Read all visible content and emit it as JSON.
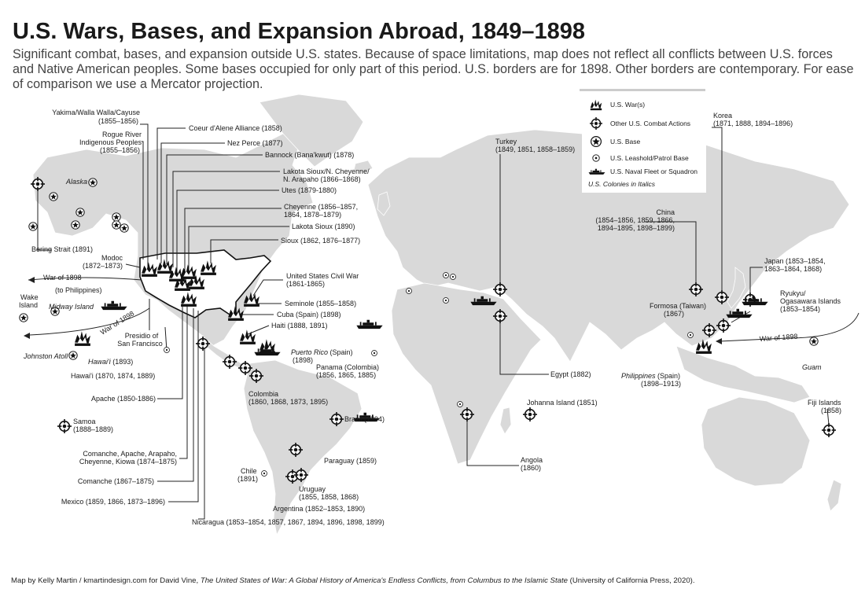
{
  "title": "U.S. Wars, Bases, and Expansion Abroad, 1849–1898",
  "subtitle": "Significant combat, bases, and expansion outside U.S. states. Because of space limitations, map does not reflect all conflicts between U.S. forces and Native American peoples. Some bases occupied for only part of this period. U.S. borders are for 1898. Other borders are contemporary. For ease of comparison we use a Mercator projection.",
  "legend": {
    "war": "U.S. War(s)",
    "combat": "Other U.S. Combat Actions",
    "base": "U.S. Base",
    "leasehold": "U.S. Leashold/Patrol Base",
    "fleet": "U.S. Naval Fleet or Squadron",
    "colonies_note": "U.S. Colonies in Italics"
  },
  "labels": {
    "yakima": [
      "Yakima/Walla Walla/Cayuse",
      "(1855–1856)"
    ],
    "coeur": "Coeur d'Alene Alliance (1858)",
    "rogue": [
      "Rogue River",
      "Indigenous Peoples",
      "(1855–1856)"
    ],
    "nezperce": "Nez Perce (1877)",
    "bannock": "Bannock (Bana'kwut) (1878)",
    "lakota_ch": [
      "Lakota Sioux/N. Cheyenne/",
      "N. Arapaho (1866–1868)"
    ],
    "utes": "Utes (1879-1880)",
    "cheyenne": [
      "Cheyenne (1856–1857,",
      "1864, 1878–1879)"
    ],
    "lakota": "Lakota Sioux (1890)",
    "sioux": "Sioux (1862, 1876–1877)",
    "civilwar": [
      "United States Civil War",
      "(1861-1865)"
    ],
    "seminole": "Seminole (1855–1858)",
    "cuba": "Cuba (Spain) (1898)",
    "haiti": "Haiti (1888, 1891)",
    "puertorico_name": "Puerto Rico",
    "puertorico_rest": " (Spain)",
    "puertorico_year": "(1898)",
    "panama": [
      "Panama (Colombia)",
      "(1856, 1865, 1885)"
    ],
    "colombia": [
      "Colombia",
      "(1860, 1868, 1873, 1895)"
    ],
    "brazil": "Brazil (1894)",
    "paraguay": "Paraguay (1859)",
    "chile": [
      "Chile",
      "(1891)"
    ],
    "uruguay": [
      "Uruguay",
      "(1855, 1858, 1868)"
    ],
    "argentina": "Argentina (1852–1853, 1890)",
    "nicaragua": "Nicaragua (1853–1854, 1857, 1867, 1894, 1896, 1898, 1899)",
    "mexico": "Mexico (1859, 1866, 1873–1896)",
    "comanche": "Comanche (1867–1875)",
    "comanche2": [
      "Comanche, Apache, Arapaho,",
      "Cheyenne, Kiowa (1874–1875)"
    ],
    "apache": "Apache (1850-1886)",
    "presidio": [
      "Presidio of",
      "San Francisco"
    ],
    "modoc": [
      "Modoc",
      "(1872–1873)"
    ],
    "bering": "Bering Strait (1891)",
    "alaska": "Alaska",
    "war1898a": "War of 1898",
    "tophil": "(to Philippines)",
    "wake": [
      "Wake",
      "Island"
    ],
    "midway": "Midway Island",
    "war1898b": "War of 1898",
    "johnston": "Johnston Atoll",
    "hawaii_it": "Hawai'i",
    "hawaii_it_year": " (1893)",
    "hawaii": [
      "Hawai'i (1870, 1874, 1889)"
    ],
    "samoa": [
      "Samoa",
      "(1888–1889)"
    ],
    "turkey": [
      "Turkey",
      "(1849, 1851, 1858–1859)"
    ],
    "egypt": "Egypt (1882)",
    "johanna": [
      "Johanna Island (1851)"
    ],
    "angola": [
      "Angola",
      "(1860)"
    ],
    "china": [
      "China",
      "(1854–1856, 1859, 1866,",
      "1894–1895, 1898–1899)"
    ],
    "korea": [
      "Korea",
      "(1871, 1888, 1894–1896)"
    ],
    "japan": [
      "Japan (1853–1854,",
      "1863–1864, 1868)"
    ],
    "ryukyu": [
      "Ryukyu/",
      "Ogasawara Islands",
      "(1853–1854)"
    ],
    "formosa": [
      "Formosa (Taiwan)",
      "(1867)"
    ],
    "war1898c": "War of 1898",
    "philippines_name": "Philippines",
    "philippines_rest": " (Spain)",
    "philippines_year": "(1898–1913)",
    "guam": "Guam",
    "fiji": [
      "Fiji Islands",
      "(1858)"
    ]
  },
  "credit_pre": "Map by Kelly Martin / kmartindesign.com for David Vine, ",
  "credit_book": "The United States of War: A Global History of America's Endless Conflicts, from Columbus to the Islamic State",
  "credit_post": " (University of California Press, 2020).",
  "markers": {
    "war": [
      [
        190,
        342
      ],
      [
        210,
        338
      ],
      [
        225,
        348
      ],
      [
        240,
        345
      ],
      [
        265,
        340
      ],
      [
        232,
        360
      ],
      [
        250,
        358
      ],
      [
        240,
        380
      ],
      [
        320,
        380
      ],
      [
        300,
        398
      ],
      [
        315,
        428
      ],
      [
        340,
        440
      ],
      [
        105,
        430
      ],
      [
        895,
        440
      ]
    ],
    "combat": [
      [
        48,
        234
      ],
      [
        258,
        437
      ],
      [
        292,
        460
      ],
      [
        312,
        468
      ],
      [
        326,
        478
      ],
      [
        428,
        533
      ],
      [
        376,
        572
      ],
      [
        372,
        606
      ],
      [
        383,
        604
      ],
      [
        636,
        368
      ],
      [
        636,
        402
      ],
      [
        594,
        527
      ],
      [
        674,
        527
      ],
      [
        885,
        368
      ],
      [
        918,
        378
      ],
      [
        954,
        381
      ],
      [
        920,
        414
      ],
      [
        902,
        420
      ],
      [
        82,
        542
      ],
      [
        1054,
        547
      ]
    ],
    "base": [
      [
        68,
        250
      ],
      [
        102,
        270
      ],
      [
        148,
        276
      ],
      [
        148,
        286
      ],
      [
        158,
        290
      ],
      [
        96,
        286
      ],
      [
        42,
        288
      ],
      [
        70,
        396
      ],
      [
        93,
        452
      ],
      [
        1035,
        434
      ],
      [
        30,
        404
      ],
      [
        118,
        232
      ]
    ],
    "leasehold": [
      [
        567,
        350
      ],
      [
        576,
        352
      ],
      [
        520,
        370
      ],
      [
        476,
        449
      ],
      [
        585,
        514
      ],
      [
        336,
        602
      ],
      [
        212,
        445
      ],
      [
        878,
        426
      ],
      [
        567,
        382
      ]
    ],
    "fleet": [
      [
        145,
        388
      ],
      [
        470,
        412
      ],
      [
        615,
        382
      ],
      [
        940,
        398
      ],
      [
        960,
        382
      ],
      [
        340,
        446
      ],
      [
        466,
        530
      ]
    ]
  }
}
